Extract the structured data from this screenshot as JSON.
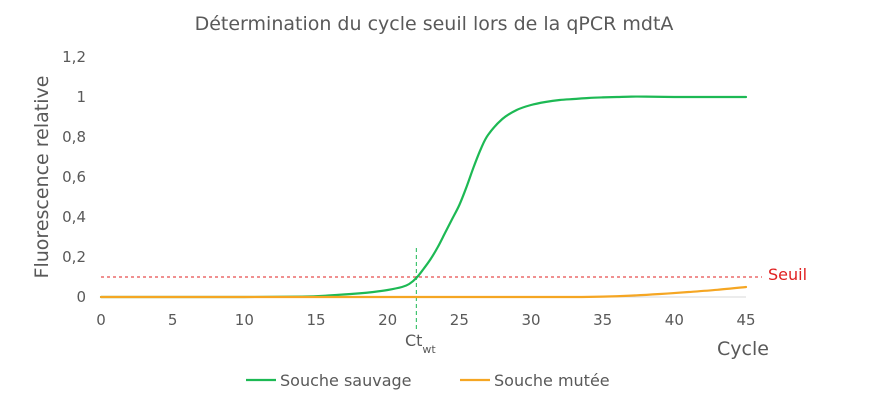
{
  "chart_data": {
    "type": "line",
    "title": "Détermination du cycle seuil lors de la qPCR mdtA",
    "xlabel": "Cycle",
    "ylabel": "Fluorescence relative",
    "xlim": [
      0,
      45
    ],
    "ylim": [
      0,
      1.2
    ],
    "x_ticks": [
      "0",
      "5",
      "10",
      "15",
      "20",
      "25",
      "30",
      "35",
      "40",
      "45"
    ],
    "y_ticks": [
      "0",
      "0,2",
      "0,4",
      "0,6",
      "0,8",
      "1",
      "1,2"
    ],
    "grid": false,
    "legend_position": "bottom",
    "series": [
      {
        "name": "Souche sauvage",
        "color": "#1db954",
        "x": [
          0,
          5,
          10,
          14,
          16,
          18,
          19,
          20,
          21,
          21.5,
          22,
          22.5,
          23,
          23.5,
          24,
          24.5,
          25,
          25.5,
          26,
          26.5,
          27,
          28,
          29,
          30,
          31,
          32,
          33,
          34,
          35,
          36,
          37,
          38,
          40,
          42,
          45
        ],
        "y": [
          0,
          0,
          0,
          0.002,
          0.008,
          0.018,
          0.025,
          0.035,
          0.05,
          0.065,
          0.095,
          0.14,
          0.19,
          0.25,
          0.32,
          0.39,
          0.46,
          0.55,
          0.65,
          0.74,
          0.81,
          0.89,
          0.935,
          0.96,
          0.975,
          0.985,
          0.99,
          0.995,
          0.998,
          1.0,
          1.002,
          1.002,
          1.0,
          1.0,
          1.0
        ]
      },
      {
        "name": "Souche mutée",
        "color": "#f5a623",
        "x": [
          0,
          10,
          20,
          30,
          33,
          35,
          37,
          39,
          41,
          43,
          45
        ],
        "y": [
          0,
          0,
          0,
          0,
          0,
          0.002,
          0.007,
          0.015,
          0.025,
          0.036,
          0.05
        ]
      }
    ],
    "threshold": {
      "value": 0.1,
      "label": "Seuil",
      "color": "#e02020"
    },
    "ct_marker": {
      "x": 22,
      "label": "Ct",
      "label_sub": "wt",
      "color": "#1db954"
    }
  }
}
